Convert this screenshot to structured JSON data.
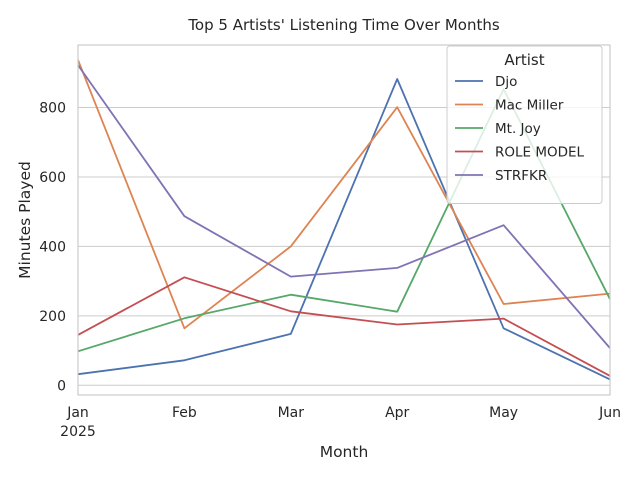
{
  "chart_data": {
    "type": "line",
    "title": "Top 5 Artists' Listening Time Over Months",
    "xlabel": "Month",
    "ylabel": "Minutes Played",
    "x": [
      "Jan",
      "Feb",
      "Mar",
      "Apr",
      "May",
      "Jun"
    ],
    "x_year_label": "2025",
    "yticks": [
      0,
      200,
      400,
      600,
      800
    ],
    "ylim": [
      -28,
      980
    ],
    "grid": "horizontal",
    "legend": {
      "title": "Artist",
      "placement": "top-right"
    },
    "series": [
      {
        "name": "Djo",
        "color": "#4c72b0",
        "values": [
          32,
          72,
          148,
          882,
          164,
          17
        ]
      },
      {
        "name": "Mac Miller",
        "color": "#dd8452",
        "values": [
          937,
          164,
          400,
          801,
          234,
          264
        ]
      },
      {
        "name": "Mt. Joy",
        "color": "#55a868",
        "values": [
          98,
          193,
          261,
          212,
          853,
          248
        ]
      },
      {
        "name": "ROLE MODEL",
        "color": "#c44e52",
        "values": [
          145,
          311,
          213,
          175,
          192,
          27
        ]
      },
      {
        "name": "STRFKR",
        "color": "#8172b3",
        "values": [
          922,
          487,
          313,
          338,
          461,
          107
        ]
      }
    ]
  }
}
